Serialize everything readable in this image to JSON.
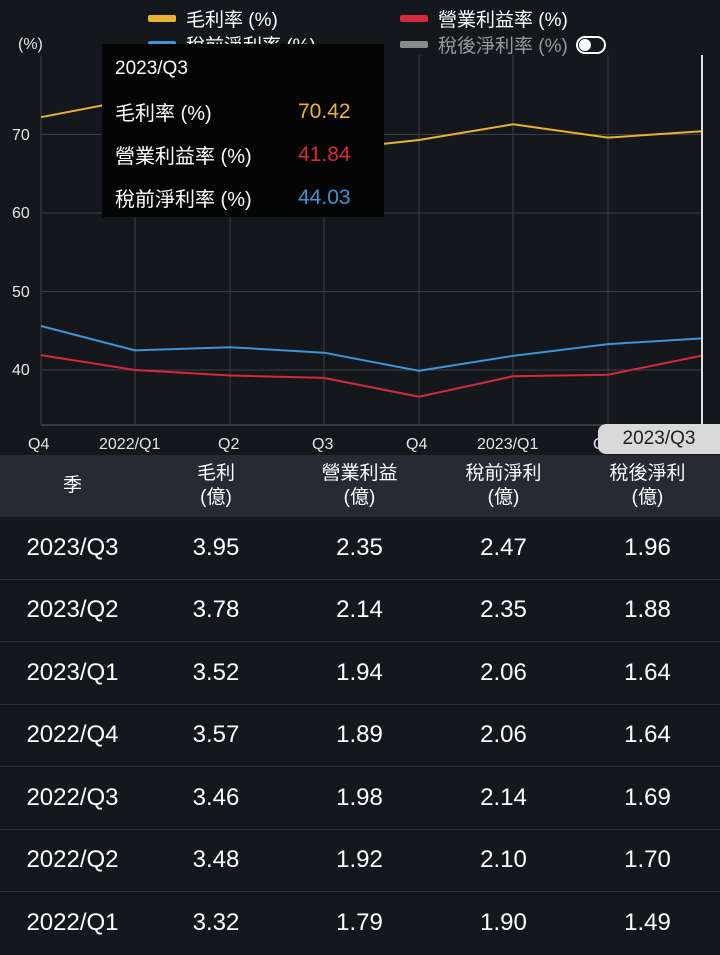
{
  "legend": [
    {
      "label": "毛利率 (%)",
      "color": "#e8b234"
    },
    {
      "label": "營業利益率 (%)",
      "color": "#d42a3c"
    },
    {
      "label": "稅前淨利率 (%)",
      "color": "#3e94d6"
    },
    {
      "label": "稅後淨利率 (%)",
      "color": "#8a8a8a"
    }
  ],
  "chart_data": {
    "type": "line",
    "ylabel": "(%)",
    "y_ticks": [
      40,
      50,
      60,
      70
    ],
    "x_labels": [
      "Q4",
      "2022/Q1",
      "Q2",
      "Q3",
      "Q4",
      "2023/Q1",
      "Q2",
      "Q3"
    ],
    "series": [
      {
        "name": "毛利率 (%)",
        "color": "#e8b234",
        "values": [
          72.2,
          74.5,
          71.4,
          68.0,
          69.3,
          71.3,
          69.6,
          70.42
        ]
      },
      {
        "name": "營業利益率 (%)",
        "color": "#d42a3c",
        "values": [
          41.9,
          40.0,
          39.3,
          39.0,
          36.6,
          39.2,
          39.4,
          41.84
        ]
      },
      {
        "name": "稅前淨利率 (%)",
        "color": "#3e94d6",
        "values": [
          45.6,
          42.5,
          42.9,
          42.2,
          39.9,
          41.8,
          43.3,
          44.03
        ]
      }
    ]
  },
  "tooltip": {
    "title": "2023/Q3",
    "rows": [
      {
        "label": "毛利率 (%)",
        "value": "70.42",
        "color": "#e8b234"
      },
      {
        "label": "營業利益率 (%)",
        "value": "41.84",
        "color": "#d42a3c"
      },
      {
        "label": "稅前淨利率 (%)",
        "value": "44.03",
        "color": "#3e94d6"
      }
    ]
  },
  "cursor_label": "2023/Q3",
  "table": {
    "headers": [
      {
        "line1": "季",
        "line2": ""
      },
      {
        "line1": "毛利",
        "line2": "(億)"
      },
      {
        "line1": "營業利益",
        "line2": "(億)"
      },
      {
        "line1": "稅前淨利",
        "line2": "(億)"
      },
      {
        "line1": "稅後淨利",
        "line2": "(億)"
      }
    ],
    "rows": [
      [
        "2023/Q3",
        "3.95",
        "2.35",
        "2.47",
        "1.96"
      ],
      [
        "2023/Q2",
        "3.78",
        "2.14",
        "2.35",
        "1.88"
      ],
      [
        "2023/Q1",
        "3.52",
        "1.94",
        "2.06",
        "1.64"
      ],
      [
        "2022/Q4",
        "3.57",
        "1.89",
        "2.06",
        "1.64"
      ],
      [
        "2022/Q3",
        "3.46",
        "1.98",
        "2.14",
        "1.69"
      ],
      [
        "2022/Q2",
        "3.48",
        "1.92",
        "2.10",
        "1.70"
      ],
      [
        "2022/Q1",
        "3.32",
        "1.79",
        "1.90",
        "1.49"
      ]
    ]
  }
}
